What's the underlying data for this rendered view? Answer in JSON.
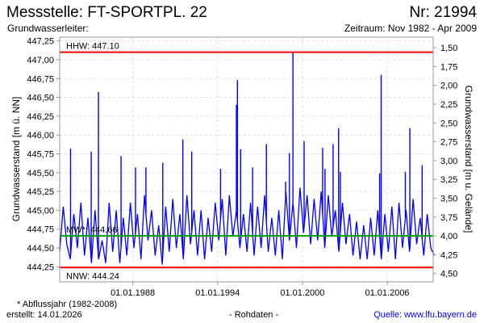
{
  "header": {
    "title": "Messstelle: FT-SPORTPL. 22",
    "number": "Nr: 21994",
    "aquifer": "Grundwasserleiter:",
    "period": "Zeitraum: Nov 1982 - Apr 2009"
  },
  "footer": {
    "note": "* Abflussjahr (1982-2008)",
    "created": "erstellt:  14.01.2026",
    "raw": "- Rohdaten -",
    "source": "Quelle: www.lfu.bayern.de"
  },
  "chart_data": {
    "type": "line",
    "ylabel": "Grundwasserstand [m ü. NN]",
    "ylabel_right": "Grundwasserstand [m u. Gelände]",
    "xlim": [
      1982.83,
      2009.25
    ],
    "ylim": [
      444.05,
      447.3
    ],
    "ground_level": 448.66,
    "grid": true,
    "x_ticks": [
      {
        "year": 1988,
        "label": "01.01.1988"
      },
      {
        "year": 1994,
        "label": "01.01.1994"
      },
      {
        "year": 2000,
        "label": "01.01.2000"
      },
      {
        "year": 2006,
        "label": "01.01.2006"
      }
    ],
    "y_ticks": [
      "444,25",
      "444,50",
      "444,75",
      "445,00",
      "445,25",
      "445,50",
      "445,75",
      "446,00",
      "446,25",
      "446,50",
      "446,75",
      "447,00",
      "447,25"
    ],
    "y_ticks_right": [
      "1,50",
      "1,75",
      "2,00",
      "2,25",
      "2,50",
      "2,75",
      "3,00",
      "3,25",
      "3,50",
      "3,75",
      "4,00",
      "4,25",
      "4,50"
    ],
    "reference_lines": [
      {
        "label": "HHW: 447.10",
        "value": 447.1,
        "color": "#ff0000"
      },
      {
        "label": "MW*: 444.66",
        "value": 444.66,
        "color": "#00a000"
      },
      {
        "label": "NNW: 444.24",
        "value": 444.24,
        "color": "#ff0000"
      }
    ],
    "series_color": "#0000ff",
    "series_start": 1982.83,
    "series_step_years": 0.25,
    "series_values": [
      444.45,
      445.05,
      444.55,
      444.35,
      444.95,
      444.5,
      445.1,
      444.4,
      444.9,
      444.3,
      445.0,
      444.35,
      444.6,
      444.3,
      445.1,
      444.45,
      445.0,
      444.3,
      444.9,
      444.4,
      445.1,
      444.5,
      444.95,
      444.35,
      445.2,
      444.6,
      445.0,
      444.4,
      444.8,
      444.28,
      445.05,
      444.45,
      445.15,
      444.5,
      444.95,
      444.35,
      445.2,
      444.55,
      445.0,
      444.4,
      445.0,
      444.35,
      444.9,
      444.45,
      445.1,
      444.6,
      445.15,
      444.4,
      445.2,
      444.65,
      445.0,
      444.5,
      444.95,
      444.45,
      445.1,
      444.4,
      445.05,
      444.5,
      445.2,
      444.45,
      444.9,
      444.4,
      445.0,
      444.35,
      445.25,
      444.6,
      445.1,
      444.5,
      445.3,
      444.7,
      445.2,
      444.55,
      445.15,
      444.6,
      445.25,
      444.5,
      445.2,
      444.65,
      445.0,
      444.45,
      445.1,
      444.55,
      444.95,
      444.4,
      444.85,
      444.35,
      444.8,
      444.35,
      444.9,
      444.4,
      445.0,
      444.35,
      444.95,
      444.45,
      445.05,
      444.35,
      445.1,
      444.5,
      445.0,
      444.45,
      445.15,
      444.55,
      444.9,
      444.4,
      444.95,
      444.5,
      444.4
    ],
    "peaks": [
      {
        "year": 1983.6,
        "value": 445.82
      },
      {
        "year": 1985.06,
        "value": 445.78
      },
      {
        "year": 1985.57,
        "value": 446.57
      },
      {
        "year": 1987.17,
        "value": 445.72
      },
      {
        "year": 1988.19,
        "value": 445.57
      },
      {
        "year": 1988.93,
        "value": 445.57
      },
      {
        "year": 1990.12,
        "value": 445.63
      },
      {
        "year": 1991.54,
        "value": 445.94
      },
      {
        "year": 1992.17,
        "value": 445.78
      },
      {
        "year": 1994.21,
        "value": 445.55
      },
      {
        "year": 1995.33,
        "value": 446.4
      },
      {
        "year": 1995.4,
        "value": 446.73
      },
      {
        "year": 1995.63,
        "value": 445.81
      },
      {
        "year": 1996.48,
        "value": 445.57
      },
      {
        "year": 1997.45,
        "value": 445.88
      },
      {
        "year": 1998.81,
        "value": 445.38
      },
      {
        "year": 1999.08,
        "value": 445.76
      },
      {
        "year": 1999.33,
        "value": 447.1
      },
      {
        "year": 2000.12,
        "value": 445.92
      },
      {
        "year": 2001.43,
        "value": 445.83
      },
      {
        "year": 2001.6,
        "value": 445.55
      },
      {
        "year": 2002.17,
        "value": 445.88
      },
      {
        "year": 2002.56,
        "value": 446.09
      },
      {
        "year": 2002.68,
        "value": 445.51
      },
      {
        "year": 2005.46,
        "value": 445.49
      },
      {
        "year": 2005.57,
        "value": 446.8
      },
      {
        "year": 2007.28,
        "value": 445.51
      },
      {
        "year": 2007.6,
        "value": 446.09
      },
      {
        "year": 2008.47,
        "value": 445.6
      }
    ]
  }
}
